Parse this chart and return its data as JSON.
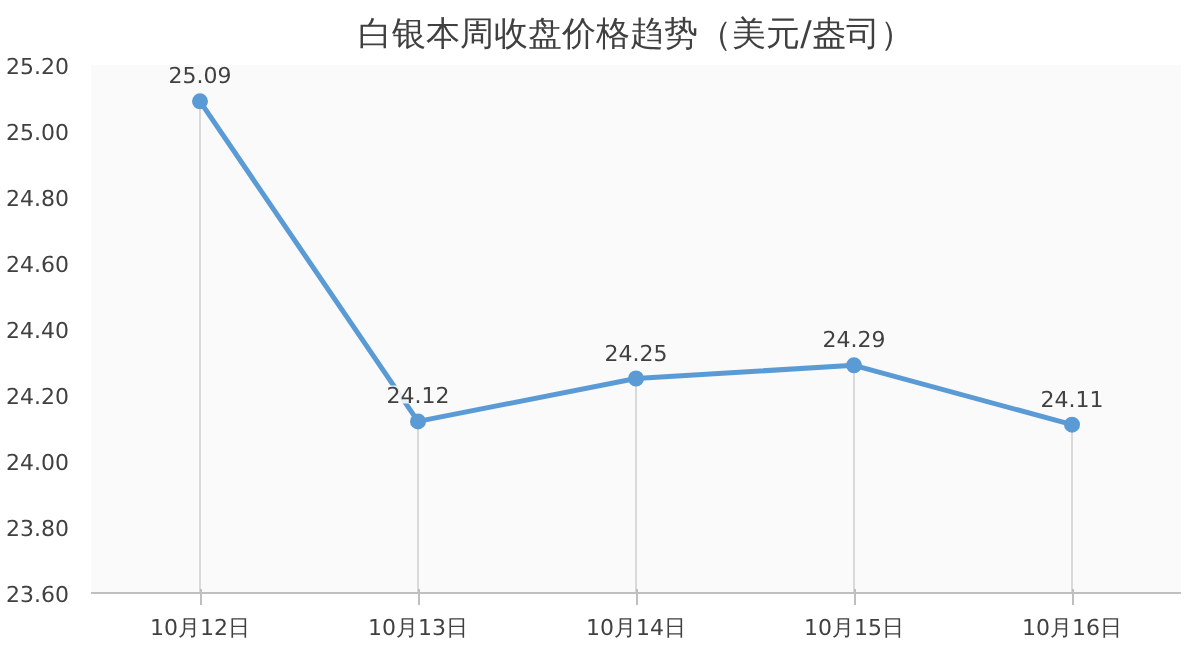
{
  "chart_data": {
    "type": "line",
    "title": "白银本周收盘价格趋势（美元/盎司）",
    "categories": [
      "10月12日",
      "10月13日",
      "10月14日",
      "10月15日",
      "10月16日"
    ],
    "series": [
      {
        "color": "#5b9bd5",
        "values": [
          25.09,
          24.12,
          24.25,
          24.29,
          24.11
        ]
      }
    ],
    "ylim": [
      23.6,
      25.2
    ],
    "yticks": [
      {
        "value": 23.6,
        "label": "23.60"
      },
      {
        "value": 23.8,
        "label": "23.80"
      },
      {
        "value": 24.0,
        "label": "24.00"
      },
      {
        "value": 24.2,
        "label": "24.20"
      },
      {
        "value": 24.4,
        "label": "24.40"
      },
      {
        "value": 24.6,
        "label": "24.60"
      },
      {
        "value": 24.8,
        "label": "24.80"
      },
      {
        "value": 25.0,
        "label": "25.00"
      },
      {
        "value": 25.2,
        "label": "25.20"
      }
    ],
    "data_labels": true,
    "marker": "circle",
    "line_style": "solid"
  }
}
